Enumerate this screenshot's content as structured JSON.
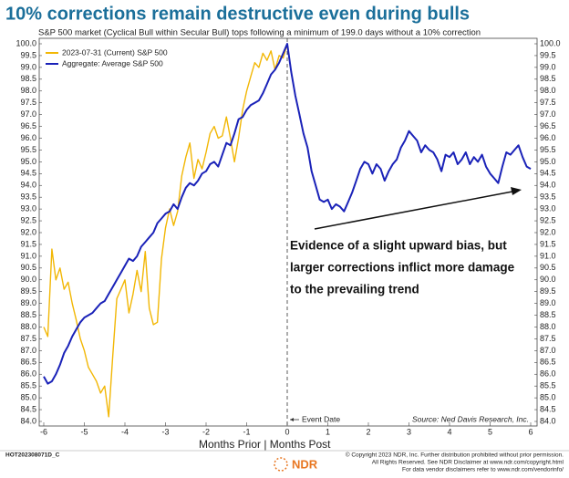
{
  "chart_data": {
    "type": "line",
    "title": "10% corrections remain destructive even during bulls",
    "subtitle": "S&P 500 market (Cyclical Bull within Secular Bull) tops following a minimum of 199.0 days without a 10% correction",
    "xlabel": "Months Prior | Months Post",
    "event_label": "Event Date",
    "source": "Source: Ned Davis Research, Inc.",
    "annotation": [
      "Evidence of a slight upward bias, but",
      "larger corrections inflict more damage",
      "to the prevailing trend"
    ],
    "legend": "top-left",
    "xlim": [
      -6,
      6
    ],
    "xticks": [
      -6,
      -5,
      -4,
      -3,
      -2,
      -1,
      0,
      1,
      2,
      3,
      4,
      5,
      6
    ],
    "ylim": [
      84,
      100
    ],
    "yticks": [
      {
        "value": 84,
        "label": "84.0"
      },
      84.5,
      {
        "value": 85,
        "label": "85.0"
      },
      85.5,
      {
        "value": 86,
        "label": "86.0"
      },
      86.5,
      {
        "value": 87,
        "label": "87.0"
      },
      87.5,
      {
        "value": 88,
        "label": "88.0"
      },
      88.5,
      {
        "value": 89,
        "label": "89.0"
      },
      89.5,
      {
        "value": 90,
        "label": "90.0"
      },
      90.5,
      {
        "value": 91,
        "label": "91.0"
      },
      91.5,
      {
        "value": 92,
        "label": "92.0"
      },
      92.5,
      {
        "value": 93,
        "label": "93.0"
      },
      93.5,
      {
        "value": 94,
        "label": "94.0"
      },
      94.5,
      {
        "value": 95,
        "label": "95.0"
      },
      95.5,
      {
        "value": 96,
        "label": "96.0"
      },
      96.5,
      {
        "value": 97,
        "label": "97.0"
      },
      97.5,
      {
        "value": 98,
        "label": "98.0"
      },
      98.5,
      {
        "value": 99,
        "label": "99.0"
      },
      99.5,
      {
        "value": 100,
        "label": "100.0"
      }
    ],
    "x": [
      -6,
      -5.9,
      -5.8,
      -5.7,
      -5.6,
      -5.5,
      -5.4,
      -5.3,
      -5.2,
      -5.1,
      -5,
      -4.9,
      -4.8,
      -4.7,
      -4.6,
      -4.5,
      -4.4,
      -4.3,
      -4.2,
      -4.1,
      -4,
      -3.9,
      -3.8,
      -3.7,
      -3.6,
      -3.5,
      -3.4,
      -3.3,
      -3.2,
      -3.1,
      -3,
      -2.9,
      -2.8,
      -2.7,
      -2.6,
      -2.5,
      -2.4,
      -2.3,
      -2.2,
      -2.1,
      -2,
      -1.9,
      -1.8,
      -1.7,
      -1.6,
      -1.5,
      -1.4,
      -1.3,
      -1.2,
      -1.1,
      -1,
      -0.9,
      -0.8,
      -0.7,
      -0.6,
      -0.5,
      -0.4,
      -0.3,
      -0.2,
      -0.1,
      0,
      0.1,
      0.2,
      0.3,
      0.4,
      0.5,
      0.6,
      0.7,
      0.8,
      0.9,
      1,
      1.1,
      1.2,
      1.3,
      1.4,
      1.5,
      1.6,
      1.7,
      1.8,
      1.9,
      2,
      2.1,
      2.2,
      2.3,
      2.4,
      2.5,
      2.6,
      2.7,
      2.8,
      2.9,
      3,
      3.1,
      3.2,
      3.3,
      3.4,
      3.5,
      3.6,
      3.7,
      3.8,
      3.9,
      4,
      4.1,
      4.2,
      4.3,
      4.4,
      4.5,
      4.6,
      4.7,
      4.8,
      4.9,
      5,
      5.1,
      5.2,
      5.3,
      5.4,
      5.5,
      5.6,
      5.7,
      5.8,
      5.9,
      6
    ],
    "series": [
      {
        "name": "2023-07-31 (Current) S&P 500",
        "color": "#f2b705",
        "values": [
          88.0,
          87.6,
          91.3,
          90.0,
          90.5,
          89.6,
          89.9,
          89.0,
          88.3,
          87.5,
          87.0,
          86.3,
          86.0,
          85.7,
          85.2,
          85.5,
          84.2,
          86.8,
          89.2,
          89.6,
          90.0,
          88.6,
          89.4,
          90.4,
          89.5,
          91.2,
          88.8,
          88.1,
          88.2,
          90.9,
          92.2,
          93.0,
          92.3,
          92.9,
          94.4,
          95.2,
          95.8,
          94.3,
          95.1,
          94.7,
          95.4,
          96.2,
          96.5,
          96.0,
          96.1,
          96.9,
          96.0,
          95.0,
          96.0,
          97.2,
          98.0,
          98.6,
          99.2,
          99.0,
          99.6,
          99.3,
          99.7,
          98.9,
          99.5,
          99.4,
          100.0,
          null,
          null,
          null,
          null,
          null,
          null,
          null,
          null,
          null,
          null,
          null,
          null,
          null,
          null,
          null,
          null,
          null,
          null,
          null,
          null,
          null,
          null,
          null,
          null,
          null,
          null,
          null,
          null,
          null,
          null,
          null,
          null,
          null,
          null,
          null,
          null,
          null,
          null,
          null,
          null,
          null,
          null,
          null,
          null,
          null,
          null,
          null,
          null,
          null,
          null,
          null,
          null,
          null,
          null,
          null,
          null,
          null,
          null,
          null,
          null
        ]
      },
      {
        "name": "Aggregate: Average S&P 500",
        "color": "#1a22b8",
        "values": [
          85.9,
          85.6,
          85.7,
          86.0,
          86.4,
          86.9,
          87.2,
          87.6,
          87.9,
          88.2,
          88.4,
          88.5,
          88.6,
          88.8,
          89.0,
          89.1,
          89.4,
          89.7,
          90.0,
          90.3,
          90.6,
          90.9,
          90.8,
          91.0,
          91.4,
          91.6,
          91.8,
          92.0,
          92.4,
          92.6,
          92.8,
          92.9,
          93.2,
          93.0,
          93.5,
          93.9,
          94.1,
          94.0,
          94.2,
          94.5,
          94.6,
          94.9,
          95.0,
          94.8,
          95.3,
          95.8,
          95.7,
          96.2,
          96.8,
          96.9,
          97.2,
          97.4,
          97.5,
          97.6,
          97.9,
          98.3,
          98.7,
          98.9,
          99.2,
          99.6,
          100.0,
          98.8,
          97.8,
          97.0,
          96.2,
          95.6,
          94.6,
          94.0,
          93.4,
          93.3,
          93.4,
          93.0,
          93.2,
          93.1,
          92.9,
          93.3,
          93.7,
          94.2,
          94.7,
          95.0,
          94.9,
          94.5,
          94.9,
          94.7,
          94.2,
          94.6,
          94.9,
          95.1,
          95.6,
          95.9,
          96.3,
          96.1,
          95.9,
          95.4,
          95.7,
          95.5,
          95.4,
          95.1,
          94.6,
          95.3,
          95.2,
          95.4,
          94.9,
          95.1,
          95.4,
          94.9,
          95.2,
          95.0,
          95.3,
          94.8,
          94.5,
          94.3,
          94.1,
          94.8,
          95.4,
          95.3,
          95.5,
          95.7,
          95.2,
          94.8,
          94.7
        ]
      }
    ]
  },
  "footer": {
    "code": "HOT202308071D_C",
    "logo": "NDR",
    "notes": [
      "© Copyright 2023 NDR, Inc. Further distribution prohibited without prior permission.",
      "All Rights Reserved. See NDR Disclaimer at www.ndr.com/copyright.html",
      "For data vendor disclaimers refer to www.ndr.com/vendorinfo/"
    ]
  }
}
